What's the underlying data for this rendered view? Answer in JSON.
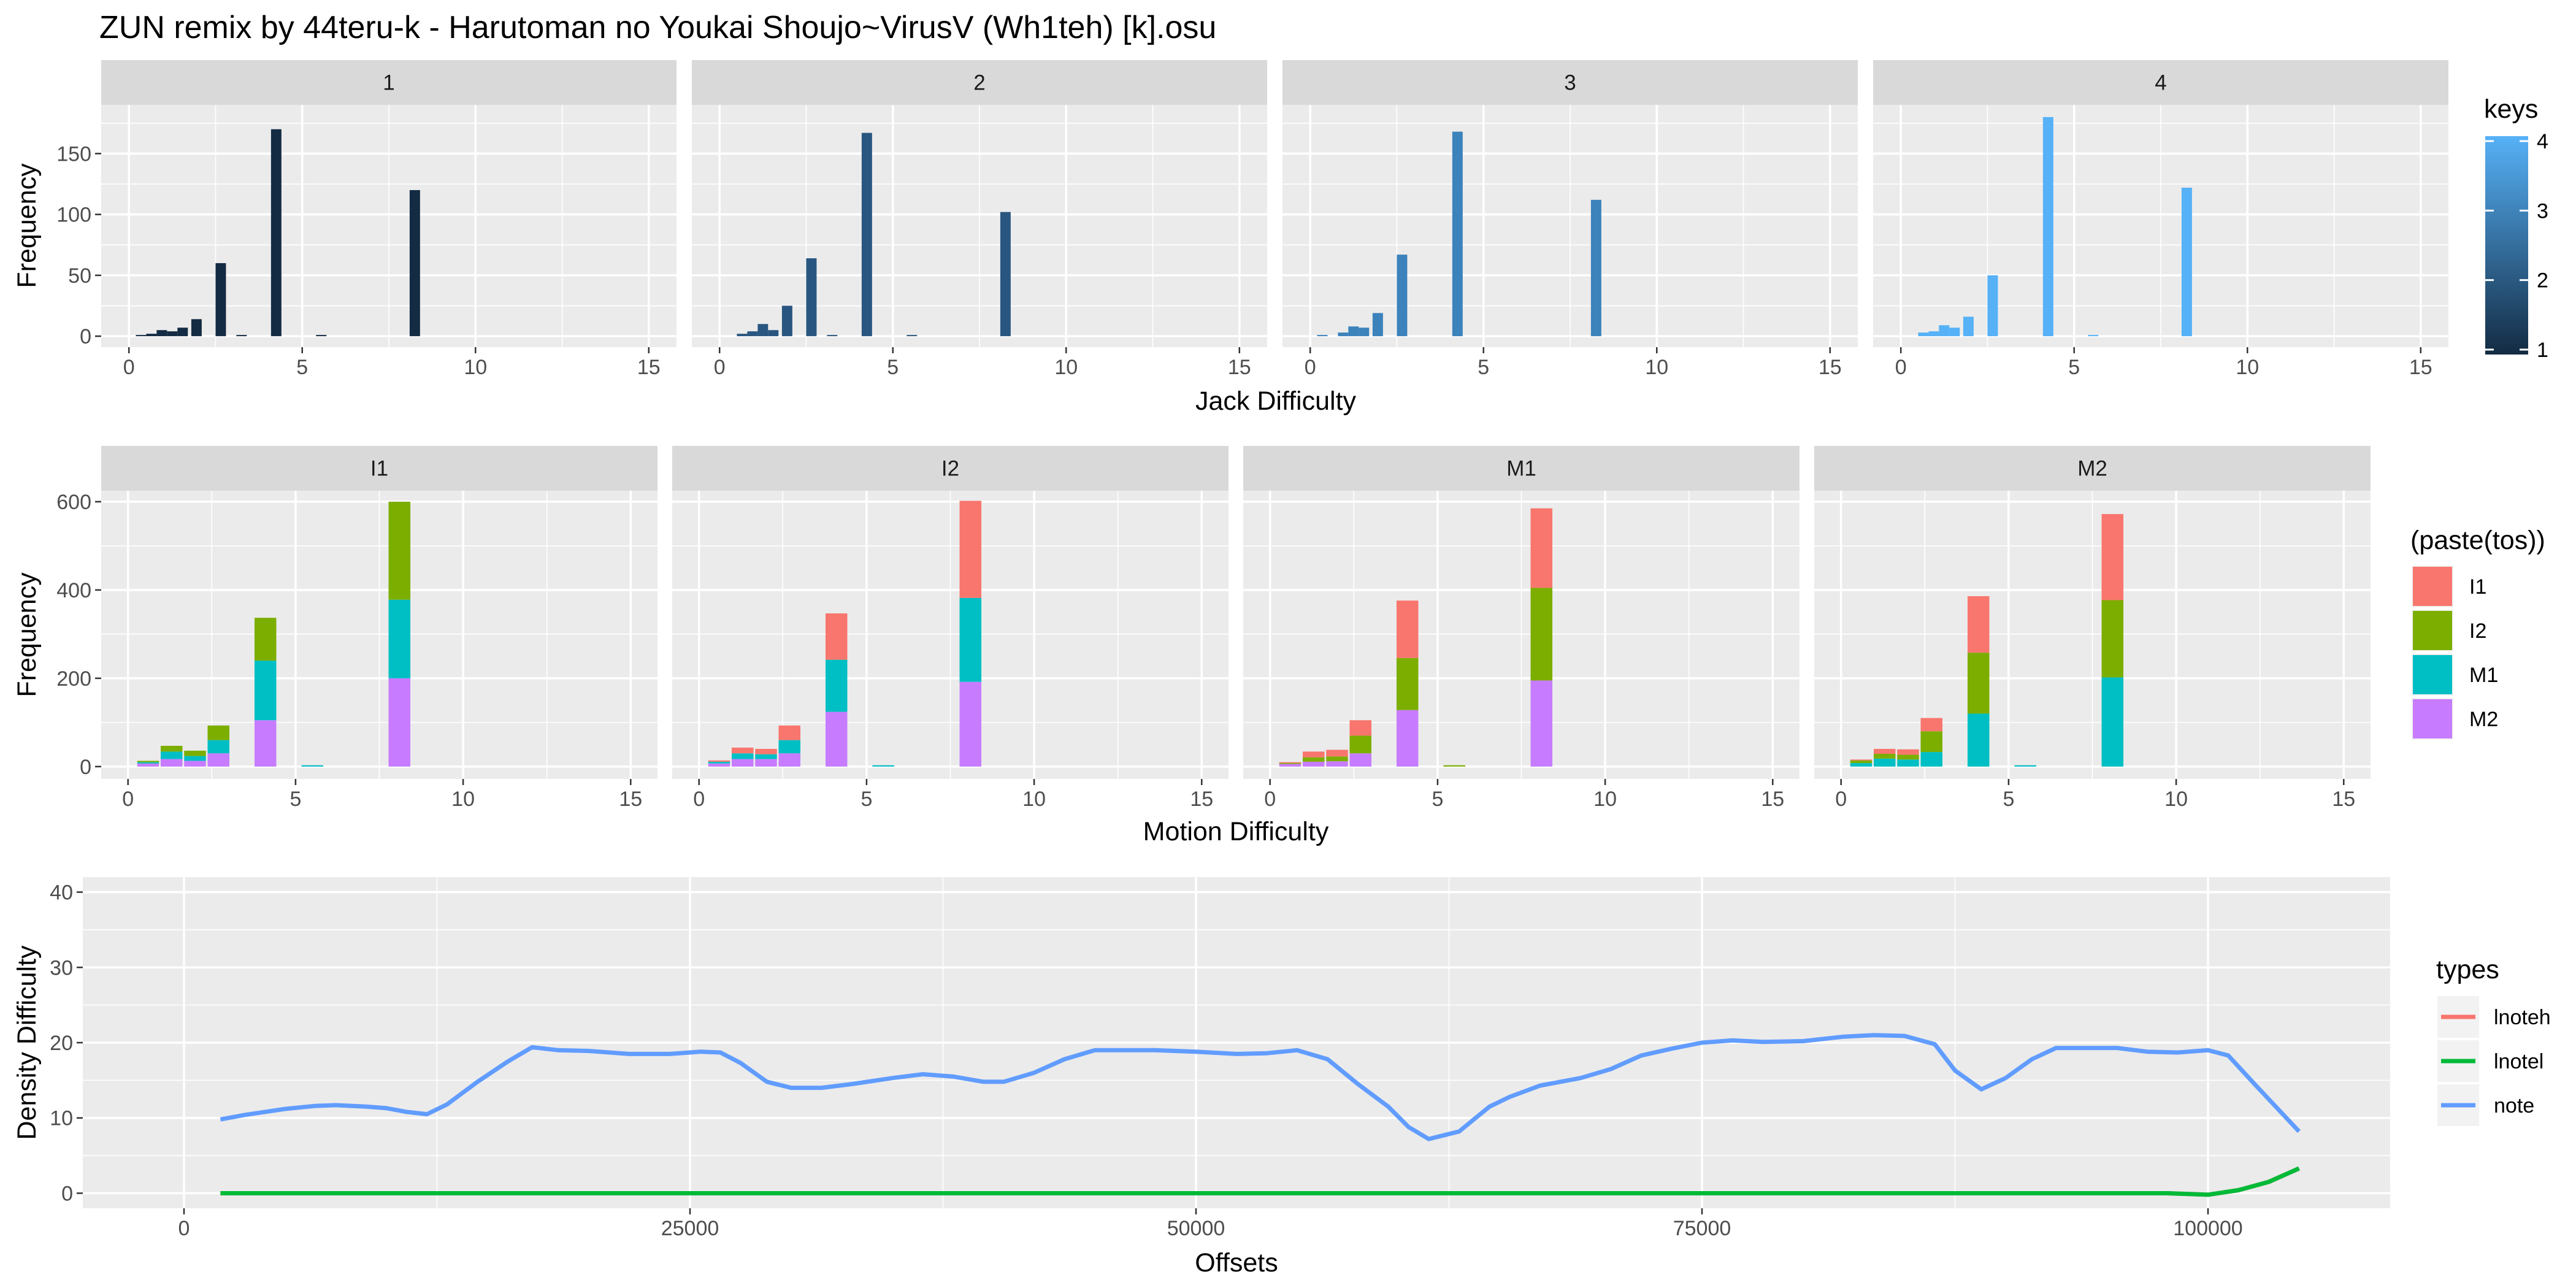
{
  "title": "ZUN remix by 44teru-k - Harutoman no Youkai Shoujo~VirusV (Wh1teh) [k].osu",
  "chart_data": [
    {
      "type": "bar",
      "id": "jack",
      "facets": [
        "1",
        "2",
        "3",
        "4"
      ],
      "xlabel": "Jack Difficulty",
      "ylabel": "Frequency",
      "xlim": [
        -0.8,
        15.8
      ],
      "ylim": [
        -9,
        190
      ],
      "xticks": [
        0,
        5,
        10,
        15
      ],
      "xtick_labels": [
        "0",
        "5",
        "10",
        "15"
      ],
      "yticks": [
        0,
        50,
        100,
        150
      ],
      "ytick_labels": [
        "0",
        "50",
        "100",
        "150"
      ],
      "bin_width": 0.3,
      "facet_colors": [
        "#132B43",
        "#285680",
        "#3C82BB",
        "#56B1F7"
      ],
      "bars": [
        [
          [
            0.35,
            1
          ],
          [
            0.65,
            2
          ],
          [
            0.95,
            5
          ],
          [
            1.25,
            4
          ],
          [
            1.55,
            7
          ],
          [
            1.95,
            14
          ],
          [
            2.65,
            60
          ],
          [
            3.25,
            1
          ],
          [
            4.25,
            170
          ],
          [
            5.55,
            1
          ],
          [
            8.25,
            120
          ]
        ],
        [
          [
            0.65,
            2
          ],
          [
            0.95,
            4
          ],
          [
            1.25,
            10
          ],
          [
            1.55,
            5
          ],
          [
            1.95,
            25
          ],
          [
            2.65,
            64
          ],
          [
            3.25,
            1
          ],
          [
            4.25,
            167
          ],
          [
            5.55,
            1
          ],
          [
            8.25,
            102
          ]
        ],
        [
          [
            0.35,
            1
          ],
          [
            0.95,
            3
          ],
          [
            1.25,
            8
          ],
          [
            1.55,
            7
          ],
          [
            1.95,
            19
          ],
          [
            2.65,
            67
          ],
          [
            4.25,
            168
          ],
          [
            8.25,
            112
          ]
        ],
        [
          [
            0.65,
            3
          ],
          [
            0.95,
            4
          ],
          [
            1.25,
            9
          ],
          [
            1.55,
            7
          ],
          [
            1.95,
            16
          ],
          [
            2.65,
            50
          ],
          [
            4.25,
            180
          ],
          [
            5.55,
            1
          ],
          [
            8.25,
            122
          ]
        ]
      ],
      "legend": {
        "title": "keys",
        "type": "gradient",
        "low_color": "#132B43",
        "high_color": "#56B1F7",
        "range": [
          1,
          4
        ],
        "labels": [
          "1",
          "2",
          "3",
          "4"
        ]
      }
    },
    {
      "type": "bar",
      "id": "motion",
      "stacked": true,
      "facets": [
        "I1",
        "I2",
        "M1",
        "M2"
      ],
      "xlabel": "Motion Difficulty",
      "ylabel": "Frequency",
      "xlim": [
        -0.8,
        15.8
      ],
      "ylim": [
        -28,
        625
      ],
      "xticks": [
        0,
        5,
        10,
        15
      ],
      "xtick_labels": [
        "0",
        "5",
        "10",
        "15"
      ],
      "yticks": [
        0,
        200,
        400,
        600
      ],
      "ytick_labels": [
        "0",
        "200",
        "400",
        "600"
      ],
      "bin_width": 0.65,
      "series_names": [
        "I1",
        "I2",
        "M1",
        "M2"
      ],
      "series_colors": [
        "#F8766D",
        "#7CAE00",
        "#00BFC4",
        "#C77CFF"
      ],
      "bars": [
        [
          {
            "x": 0.6,
            "values": [
              0,
              3,
              3,
              7
            ]
          },
          {
            "x": 1.3,
            "values": [
              0,
              13,
              17,
              17
            ]
          },
          {
            "x": 2.0,
            "values": [
              0,
              12,
              11,
              13
            ]
          },
          {
            "x": 2.7,
            "values": [
              0,
              33,
              30,
              30
            ]
          },
          {
            "x": 4.1,
            "values": [
              0,
              97,
              135,
              105
            ]
          },
          {
            "x": 5.5,
            "values": [
              0,
              0,
              3,
              0
            ]
          },
          {
            "x": 8.1,
            "values": [
              0,
              222,
              178,
              200
            ]
          }
        ],
        [
          {
            "x": 0.6,
            "values": [
              3,
              0,
              4,
              7
            ]
          },
          {
            "x": 1.3,
            "values": [
              13,
              0,
              13,
              17
            ]
          },
          {
            "x": 2.0,
            "values": [
              12,
              0,
              11,
              17
            ]
          },
          {
            "x": 2.7,
            "values": [
              33,
              0,
              30,
              30
            ]
          },
          {
            "x": 4.1,
            "values": [
              105,
              0,
              118,
              124
            ]
          },
          {
            "x": 5.5,
            "values": [
              0,
              0,
              3,
              0
            ]
          },
          {
            "x": 8.1,
            "values": [
              220,
              0,
              190,
              192
            ]
          }
        ],
        [
          {
            "x": 0.6,
            "values": [
              2,
              2,
              0,
              6
            ]
          },
          {
            "x": 1.3,
            "values": [
              13,
              10,
              0,
              11
            ]
          },
          {
            "x": 2.0,
            "values": [
              15,
              11,
              0,
              12
            ]
          },
          {
            "x": 2.7,
            "values": [
              35,
              40,
              0,
              30
            ]
          },
          {
            "x": 4.1,
            "values": [
              130,
              118,
              0,
              128
            ]
          },
          {
            "x": 5.5,
            "values": [
              0,
              3,
              0,
              0
            ]
          },
          {
            "x": 8.1,
            "values": [
              180,
              210,
              0,
              195
            ]
          }
        ],
        [
          {
            "x": 0.6,
            "values": [
              2,
              6,
              8,
              0
            ]
          },
          {
            "x": 1.3,
            "values": [
              11,
              11,
              18,
              0
            ]
          },
          {
            "x": 2.0,
            "values": [
              12,
              11,
              16,
              0
            ]
          },
          {
            "x": 2.7,
            "values": [
              30,
              47,
              33,
              0
            ]
          },
          {
            "x": 4.1,
            "values": [
              128,
              138,
              120,
              0
            ]
          },
          {
            "x": 5.5,
            "values": [
              0,
              0,
              3,
              0
            ]
          },
          {
            "x": 8.1,
            "values": [
              195,
              175,
              202,
              0
            ]
          }
        ]
      ],
      "legend": {
        "title": "(paste(tos))",
        "labels": [
          "I1",
          "I2",
          "M1",
          "M2"
        ]
      }
    },
    {
      "type": "line",
      "id": "density",
      "xlabel": "Offsets",
      "ylabel": "Density Difficulty",
      "xlim": [
        -5000,
        109000
      ],
      "ylim": [
        -2,
        42
      ],
      "xticks": [
        0,
        25000,
        50000,
        75000,
        100000
      ],
      "xtick_labels": [
        "0",
        "25000",
        "50000",
        "75000",
        "100000"
      ],
      "yticks": [
        0,
        10,
        20,
        30,
        40
      ],
      "ytick_labels": [
        "0",
        "10",
        "20",
        "30",
        "40"
      ],
      "series": [
        {
          "name": "lnoteh",
          "color": "#F8766D",
          "points": [
            [
              1800,
              0
            ],
            [
              98000,
              0
            ],
            [
              100000,
              -0.2
            ],
            [
              101500,
              0.4
            ],
            [
              103000,
              1.5
            ],
            [
              104500,
              3.3
            ]
          ]
        },
        {
          "name": "lnotel",
          "color": "#00BA38",
          "points": [
            [
              1800,
              0
            ],
            [
              98000,
              0
            ],
            [
              100000,
              -0.2
            ],
            [
              101500,
              0.4
            ],
            [
              103000,
              1.5
            ],
            [
              104500,
              3.3
            ]
          ]
        },
        {
          "name": "note",
          "color": "#619CFF",
          "points": [
            [
              1800,
              9.8
            ],
            [
              3000,
              10.4
            ],
            [
              4000,
              10.8
            ],
            [
              5000,
              11.2
            ],
            [
              6500,
              11.6
            ],
            [
              7500,
              11.7
            ],
            [
              9000,
              11.5
            ],
            [
              10000,
              11.3
            ],
            [
              11000,
              10.8
            ],
            [
              12000,
              10.5
            ],
            [
              13000,
              11.8
            ],
            [
              14500,
              14.8
            ],
            [
              16000,
              17.5
            ],
            [
              17200,
              19.4
            ],
            [
              18500,
              19.0
            ],
            [
              20000,
              18.9
            ],
            [
              22000,
              18.5
            ],
            [
              24000,
              18.5
            ],
            [
              25500,
              18.8
            ],
            [
              26500,
              18.7
            ],
            [
              27500,
              17.3
            ],
            [
              28800,
              14.8
            ],
            [
              30000,
              14.0
            ],
            [
              31500,
              14.0
            ],
            [
              33000,
              14.5
            ],
            [
              35000,
              15.3
            ],
            [
              36500,
              15.8
            ],
            [
              38000,
              15.5
            ],
            [
              39500,
              14.8
            ],
            [
              40500,
              14.8
            ],
            [
              42000,
              16.0
            ],
            [
              43500,
              17.8
            ],
            [
              45000,
              19.0
            ],
            [
              46500,
              19.0
            ],
            [
              48000,
              19.0
            ],
            [
              50000,
              18.8
            ],
            [
              52000,
              18.5
            ],
            [
              53500,
              18.6
            ],
            [
              55000,
              19.0
            ],
            [
              56500,
              17.8
            ],
            [
              58000,
              14.5
            ],
            [
              59500,
              11.5
            ],
            [
              60500,
              8.8
            ],
            [
              61500,
              7.2
            ],
            [
              63000,
              8.2
            ],
            [
              64500,
              11.5
            ],
            [
              65500,
              12.8
            ],
            [
              67000,
              14.3
            ],
            [
              69000,
              15.3
            ],
            [
              70500,
              16.5
            ],
            [
              72000,
              18.3
            ],
            [
              73500,
              19.2
            ],
            [
              75000,
              20.0
            ],
            [
              76500,
              20.3
            ],
            [
              78000,
              20.1
            ],
            [
              80000,
              20.2
            ],
            [
              82000,
              20.8
            ],
            [
              83500,
              21.0
            ],
            [
              85000,
              20.9
            ],
            [
              86500,
              19.8
            ],
            [
              87500,
              16.3
            ],
            [
              88800,
              13.8
            ],
            [
              90000,
              15.3
            ],
            [
              91300,
              17.8
            ],
            [
              92500,
              19.3
            ],
            [
              94000,
              19.3
            ],
            [
              95500,
              19.3
            ],
            [
              97000,
              18.8
            ],
            [
              98500,
              18.7
            ],
            [
              100000,
              19.0
            ],
            [
              101000,
              18.3
            ],
            [
              102300,
              14.5
            ],
            [
              104500,
              8.2
            ]
          ]
        }
      ],
      "legend": {
        "title": "types",
        "labels": [
          "lnoteh",
          "lnotel",
          "note"
        ]
      }
    }
  ]
}
